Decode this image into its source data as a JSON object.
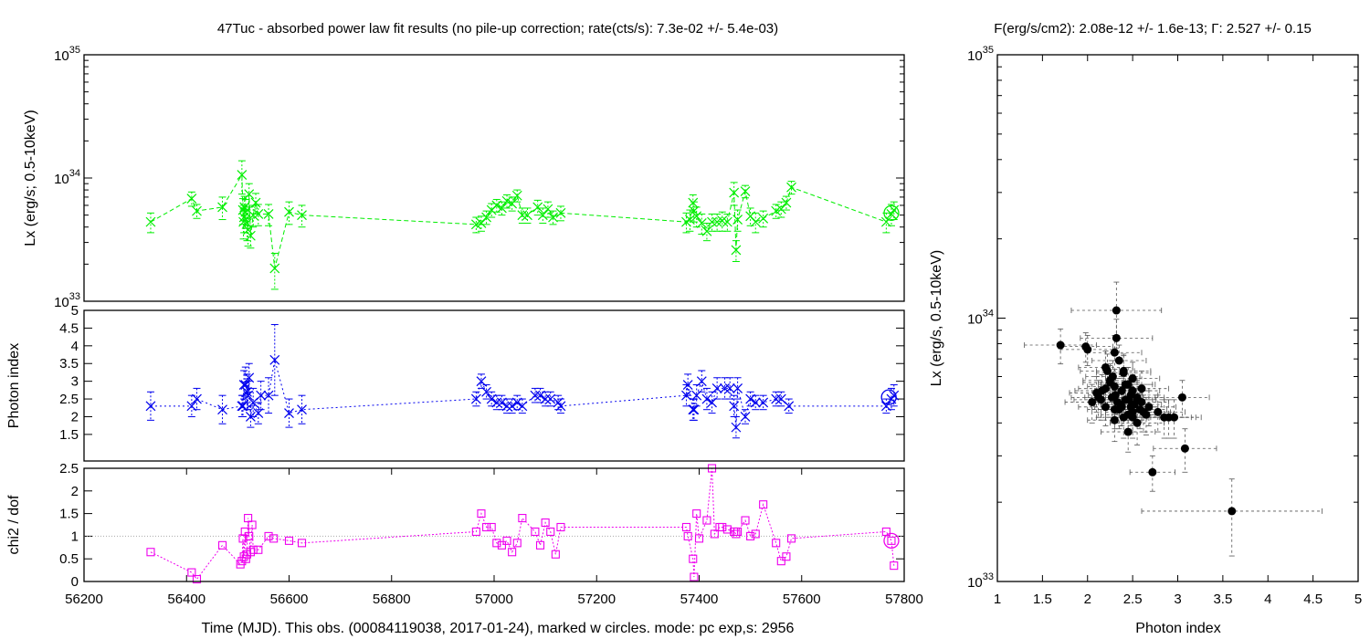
{
  "header": {
    "left_title": "47Tuc  - absorbed power law fit results (no pile-up correction; rate(cts/s): 7.3e-02 +/- 5.4e-03)",
    "right_title": "F(erg/s/cm2): 2.08e-12 +/- 1.6e-13; Γ: 2.527 +/- 0.15"
  },
  "footer": {
    "time_xlabel": "Time (MJD). This obs. (00084119038, 2017-01-24), marked w circles. mode: pc exp,s: 2956",
    "scatter_xlabel": "Photon index"
  },
  "colors": {
    "lx_series": "#00ee00",
    "photon_series": "#0000ee",
    "chi2_series": "#ee00ee",
    "scatter": "#000000"
  },
  "chart_data": [
    {
      "id": "lx_vs_time",
      "type": "line",
      "ylabel": "Lx (erg/s; 0.5-10keV)",
      "yscale": "log",
      "ylim": [
        1e+33,
        1e+35
      ],
      "y_ticks": [
        {
          "v": 1e+33,
          "mant": "10",
          "exp": "33"
        },
        {
          "v": 1e+34,
          "mant": "10",
          "exp": "34"
        },
        {
          "v": 1e+35,
          "mant": "10",
          "exp": "35"
        }
      ],
      "xlim": [
        56200,
        57800
      ],
      "marker": "x-star",
      "x": [
        56330,
        56410,
        56420,
        56470,
        56508,
        56510,
        56511,
        56512,
        56513,
        56515,
        56518,
        56520,
        56522,
        56525,
        56530,
        56535,
        56540,
        56560,
        56572,
        56600,
        56625,
        56965,
        56975,
        56985,
        56995,
        57005,
        57015,
        57025,
        57035,
        57045,
        57055,
        57065,
        57085,
        57095,
        57105,
        57115,
        57130,
        57375,
        57382,
        57388,
        57390,
        57395,
        57405,
        57415,
        57425,
        57435,
        57445,
        57455,
        57468,
        57472,
        57475,
        57490,
        57500,
        57510,
        57525,
        57550,
        57560,
        57570,
        57580,
        57765,
        57775,
        57780
      ],
      "y": [
        4.4e+33,
        6.8e+33,
        5.4e+33,
        5.8e+33,
        1.06e+34,
        5.5e+33,
        4.4e+33,
        4.8e+33,
        5.8e+33,
        5.3e+33,
        4.3e+33,
        3.8e+33,
        7.4e+33,
        3.4e+33,
        5e+33,
        6.3e+33,
        5.1e+33,
        5.1e+33,
        1.85e+33,
        5.3e+33,
        5e+33,
        4.2e+33,
        4.3e+33,
        4.8e+33,
        5.5e+33,
        6e+33,
        5.7e+33,
        6.5e+33,
        6.2e+33,
        7.2e+33,
        5e+33,
        5e+33,
        5.8e+33,
        5e+33,
        5.6e+33,
        4.8e+33,
        5.2e+33,
        4.4e+33,
        4.6e+33,
        6.3e+33,
        5.4e+33,
        4.9e+33,
        4.3e+33,
        3.7e+33,
        4.4e+33,
        4.4e+33,
        4.5e+33,
        4.4e+33,
        7.6e+33,
        2.6e+33,
        4.6e+33,
        7.8e+33,
        4.9e+33,
        4.4e+33,
        4.7e+33,
        5.4e+33,
        5.6e+33,
        6.3e+33,
        8.4e+33,
        4.4e+33,
        5.1e+33,
        5.5e+33
      ],
      "y_err": [
        8e+32,
        9e+32,
        7e+32,
        1.2e+33,
        3.2e+33,
        1.3e+33,
        1.2e+33,
        1.2e+33,
        1.3e+33,
        1.4e+33,
        1.2e+33,
        1e+33,
        1.6e+33,
        7e+32,
        1e+33,
        1.2e+33,
        1e+33,
        1e+33,
        6e+32,
        1.1e+33,
        1e+33,
        6e+32,
        6e+32,
        6e+32,
        7e+32,
        7e+32,
        7e+32,
        8e+32,
        8e+32,
        8e+32,
        7e+32,
        7e+32,
        8e+32,
        7e+32,
        8e+32,
        6e+32,
        7e+32,
        8e+32,
        9e+32,
        1e+33,
        1e+33,
        9e+32,
        8e+32,
        6e+32,
        7e+32,
        7e+32,
        8e+32,
        7e+32,
        1.6e+33,
        5e+32,
        9e+32,
        9e+32,
        8e+32,
        8e+32,
        7e+32,
        7e+32,
        8e+32,
        8e+32,
        1e+33,
        8e+32,
        1e+33,
        9e+32
      ],
      "current_obs": {
        "x": 57775,
        "y": 5.2e+33
      }
    },
    {
      "id": "photon_index_vs_time",
      "type": "line",
      "ylabel": "Photon index",
      "ylim": [
        0.75,
        5
      ],
      "y_ticks": [
        "1.5",
        "2",
        "2.5",
        "3",
        "3.5",
        "4",
        "4.5",
        "5"
      ],
      "xlim": [
        56200,
        57800
      ],
      "marker": "x-star",
      "x": [
        56330,
        56410,
        56420,
        56470,
        56508,
        56510,
        56512,
        56515,
        56518,
        56520,
        56522,
        56525,
        56530,
        56540,
        56545,
        56560,
        56572,
        56600,
        56625,
        56965,
        56975,
        56985,
        56995,
        57005,
        57015,
        57025,
        57035,
        57045,
        57055,
        57080,
        57090,
        57100,
        57110,
        57125,
        57130,
        57375,
        57378,
        57388,
        57390,
        57395,
        57405,
        57415,
        57425,
        57435,
        57450,
        57460,
        57468,
        57472,
        57475,
        57490,
        57500,
        57510,
        57525,
        57550,
        57560,
        57575,
        57765,
        57775,
        57780
      ],
      "y": [
        2.3,
        2.3,
        2.5,
        2.2,
        2.3,
        2.3,
        2.9,
        2.9,
        2.7,
        2.6,
        3.1,
        2.0,
        2.4,
        2.1,
        2.6,
        2.6,
        3.6,
        2.1,
        2.2,
        2.5,
        3.0,
        2.7,
        2.5,
        2.4,
        2.4,
        2.3,
        2.3,
        2.4,
        2.3,
        2.6,
        2.6,
        2.5,
        2.5,
        2.4,
        2.3,
        2.6,
        2.9,
        2.2,
        2.2,
        2.6,
        3.0,
        2.5,
        2.4,
        2.8,
        2.8,
        2.8,
        2.3,
        1.7,
        2.8,
        2.0,
        2.5,
        2.4,
        2.4,
        2.5,
        2.5,
        2.3,
        2.3,
        2.5,
        2.6
      ],
      "y_err": [
        0.4,
        0.3,
        0.3,
        0.4,
        0.3,
        0.3,
        0.4,
        0.5,
        0.5,
        0.4,
        0.4,
        0.3,
        0.4,
        0.3,
        0.4,
        0.5,
        1.0,
        0.4,
        0.4,
        0.2,
        0.2,
        0.2,
        0.2,
        0.2,
        0.2,
        0.2,
        0.2,
        0.2,
        0.2,
        0.2,
        0.2,
        0.2,
        0.2,
        0.2,
        0.2,
        0.3,
        0.3,
        0.3,
        0.3,
        0.3,
        0.3,
        0.3,
        0.3,
        0.3,
        0.3,
        0.3,
        0.3,
        0.3,
        0.3,
        0.2,
        0.2,
        0.2,
        0.2,
        0.2,
        0.2,
        0.2,
        0.2,
        0.3,
        0.3
      ],
      "current_obs": {
        "x": 57770,
        "y": 2.55
      }
    },
    {
      "id": "chi2_vs_time",
      "type": "line",
      "ylabel": "chi2 / dof",
      "ylim": [
        0,
        2.5
      ],
      "y_ticks": [
        "0",
        "0.5",
        "1",
        "1.5",
        "2",
        "2.5"
      ],
      "reference_y": 1,
      "xlim": [
        56200,
        57800
      ],
      "x_ticks": [
        "56200",
        "56400",
        "56600",
        "56800",
        "57000",
        "57200",
        "57400",
        "57600",
        "57800"
      ],
      "marker": "square",
      "x": [
        56330,
        56410,
        56420,
        56470,
        56505,
        56508,
        56510,
        56512,
        56514,
        56516,
        56518,
        56520,
        56522,
        56525,
        56528,
        56530,
        56540,
        56560,
        56570,
        56600,
        56625,
        56965,
        56975,
        56985,
        56995,
        57005,
        57015,
        57025,
        57035,
        57045,
        57055,
        57080,
        57090,
        57100,
        57110,
        57120,
        57130,
        57375,
        57378,
        57388,
        57390,
        57395,
        57400,
        57415,
        57425,
        57430,
        57440,
        57445,
        57455,
        57468,
        57472,
        57475,
        57490,
        57500,
        57510,
        57525,
        57550,
        57560,
        57570,
        57580,
        57765,
        57775,
        57780
      ],
      "y": [
        0.65,
        0.2,
        0.05,
        0.8,
        0.38,
        0.45,
        0.95,
        0.55,
        1.1,
        0.5,
        0.6,
        1.4,
        1.0,
        0.65,
        1.25,
        0.7,
        0.7,
        1.0,
        0.95,
        0.9,
        0.85,
        1.1,
        1.5,
        1.2,
        1.2,
        0.85,
        0.8,
        0.9,
        0.65,
        0.85,
        1.4,
        1.1,
        0.8,
        1.3,
        1.1,
        0.6,
        1.2,
        1.2,
        1.0,
        0.5,
        0.1,
        1.5,
        0.95,
        1.35,
        2.5,
        1.05,
        1.2,
        1.2,
        1.15,
        1.1,
        1.05,
        1.1,
        1.35,
        1.0,
        1.05,
        1.7,
        0.85,
        0.45,
        0.55,
        0.95,
        1.1,
        0.9,
        0.35
      ],
      "current_obs": {
        "x": 57775,
        "y": 0.9
      }
    },
    {
      "id": "lx_vs_photon_index",
      "type": "scatter",
      "xlabel": "Photon index",
      "ylabel": "Lx (erg/s, 0.5-10keV)",
      "xlim": [
        1,
        5
      ],
      "x_ticks": [
        "1",
        "1.5",
        "2",
        "2.5",
        "3",
        "3.5",
        "4",
        "4.5",
        "5"
      ],
      "yscale": "log",
      "ylim": [
        1e+33,
        1e+35
      ],
      "y_ticks": [
        {
          "v": 1e+33,
          "mant": "10",
          "exp": "33"
        },
        {
          "v": 1e+34,
          "mant": "10",
          "exp": "34"
        },
        {
          "v": 1e+35,
          "mant": "10",
          "exp": "35"
        }
      ],
      "x": [
        2.32,
        1.7,
        1.98,
        2.0,
        2.32,
        2.3,
        2.22,
        2.35,
        2.4,
        2.28,
        2.25,
        2.5,
        2.3,
        2.38,
        2.45,
        2.2,
        2.1,
        2.15,
        2.27,
        2.33,
        2.42,
        2.55,
        2.48,
        2.52,
        2.6,
        2.62,
        2.38,
        2.35,
        2.45,
        2.4,
        2.3,
        2.5,
        2.58,
        2.68,
        2.55,
        2.2,
        2.25,
        2.4,
        2.05,
        2.12,
        2.16,
        2.3,
        2.45,
        2.5,
        2.55,
        2.78,
        2.85,
        2.9,
        2.96,
        3.05,
        2.48,
        2.42,
        2.6,
        2.72,
        3.08,
        3.6,
        2.65,
        2.37,
        2.31,
        2.2,
        2.5,
        2.46
      ],
      "y": [
        1.07e+34,
        7.9e+33,
        7.8e+33,
        7.6e+33,
        8.4e+33,
        7.4e+33,
        6.3e+33,
        6.9e+33,
        6.3e+33,
        6e+33,
        5.7e+33,
        5.9e+33,
        5.5e+33,
        5.3e+33,
        5.6e+33,
        5.4e+33,
        5.2e+33,
        4.9e+33,
        5e+33,
        4.8e+33,
        4.9e+33,
        4.9e+33,
        4.6e+33,
        4.7e+33,
        4.8e+33,
        4.4e+33,
        4.6e+33,
        4.5e+33,
        4.3e+33,
        4.2e+33,
        4.1e+33,
        4.4e+33,
        4.5e+33,
        4.6e+33,
        5e+33,
        6.5e+33,
        5.8e+33,
        6.2e+33,
        4.8e+33,
        5e+33,
        5.3e+33,
        4.5e+33,
        3.7e+33,
        4.2e+33,
        4e+33,
        4.4e+33,
        4.2e+33,
        4.2e+33,
        4.2e+33,
        5e+33,
        5.1e+33,
        5.6e+33,
        5.4e+33,
        2.6e+33,
        3.2e+33,
        1.85e+33,
        4.3e+33,
        4.7e+33,
        5.1e+33,
        4.6e+33,
        5.3e+33,
        4.9e+33
      ],
      "x_err": [
        0.5,
        0.4,
        0.3,
        0.3,
        0.4,
        0.3,
        0.3,
        0.3,
        0.3,
        0.3,
        0.3,
        0.3,
        0.3,
        0.3,
        0.3,
        0.3,
        0.3,
        0.3,
        0.3,
        0.3,
        0.3,
        0.3,
        0.3,
        0.3,
        0.3,
        0.3,
        0.3,
        0.3,
        0.3,
        0.3,
        0.3,
        0.3,
        0.3,
        0.3,
        0.3,
        0.3,
        0.3,
        0.3,
        0.3,
        0.3,
        0.3,
        0.3,
        0.3,
        0.3,
        0.3,
        0.3,
        0.3,
        0.3,
        0.3,
        0.3,
        0.3,
        0.3,
        0.3,
        0.25,
        0.35,
        1.0,
        0.3,
        0.3,
        0.3,
        0.3,
        0.3,
        0.3
      ],
      "y_err": [
        3e+33,
        1.2e+33,
        1e+33,
        1e+33,
        1.5e+33,
        1.2e+33,
        1e+33,
        1e+33,
        1e+33,
        9e+32,
        9e+32,
        9e+32,
        9e+32,
        8e+32,
        9e+32,
        9e+32,
        8e+32,
        8e+32,
        8e+32,
        8e+32,
        8e+32,
        8e+32,
        7e+32,
        7e+32,
        7e+32,
        7e+32,
        7e+32,
        7e+32,
        7e+32,
        7e+32,
        7e+32,
        7e+32,
        7e+32,
        7e+32,
        8e+32,
        1e+33,
        9e+32,
        1e+33,
        8e+32,
        8e+32,
        8e+32,
        7e+32,
        6e+32,
        7e+32,
        7e+32,
        7e+32,
        7e+32,
        7e+32,
        7e+32,
        8e+32,
        8e+32,
        9e+32,
        9e+32,
        4e+32,
        6e+32,
        6e+32,
        7e+32,
        8e+32,
        8e+32,
        7e+32,
        8e+32,
        8e+32
      ]
    }
  ]
}
